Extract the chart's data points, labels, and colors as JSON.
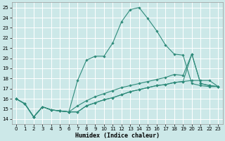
{
  "xlabel": "Humidex (Indice chaleur)",
  "bg_color": "#cce8e8",
  "grid_color": "#ffffff",
  "line_color": "#2e8b7a",
  "xlim": [
    -0.5,
    23.5
  ],
  "ylim": [
    13.5,
    25.5
  ],
  "yticks": [
    14,
    15,
    16,
    17,
    18,
    19,
    20,
    21,
    22,
    23,
    24,
    25
  ],
  "xticks": [
    0,
    1,
    2,
    3,
    4,
    5,
    6,
    7,
    8,
    9,
    10,
    11,
    12,
    13,
    14,
    15,
    16,
    17,
    18,
    19,
    20,
    21,
    22,
    23
  ],
  "series": [
    {
      "x": [
        0,
        1,
        2,
        3,
        4,
        5,
        6,
        7,
        8,
        9,
        10,
        11,
        12,
        13,
        14,
        15,
        16,
        17,
        18,
        19,
        20,
        21,
        22,
        23
      ],
      "y": [
        16.0,
        15.5,
        14.2,
        15.2,
        14.9,
        14.8,
        14.7,
        14.7,
        15.3,
        15.6,
        15.9,
        16.1,
        16.4,
        16.7,
        16.9,
        17.1,
        17.3,
        17.4,
        17.6,
        17.7,
        17.8,
        17.8,
        17.8,
        17.2
      ]
    },
    {
      "x": [
        0,
        1,
        2,
        3,
        4,
        5,
        6,
        7,
        8,
        9,
        10,
        11,
        12,
        13,
        14,
        15,
        16,
        17,
        18,
        19,
        20,
        21,
        22,
        23
      ],
      "y": [
        16.0,
        15.5,
        14.2,
        15.2,
        14.9,
        14.8,
        14.7,
        17.8,
        19.8,
        20.2,
        20.2,
        21.5,
        23.6,
        24.8,
        25.0,
        23.9,
        22.7,
        21.3,
        20.4,
        20.3,
        17.5,
        17.3,
        17.2,
        17.2
      ]
    },
    {
      "x": [
        0,
        1,
        2,
        3,
        4,
        5,
        6,
        7,
        8,
        9,
        10,
        11,
        12,
        13,
        14,
        15,
        16,
        17,
        18,
        19,
        20,
        21,
        22,
        23
      ],
      "y": [
        16.0,
        15.5,
        14.2,
        15.2,
        14.9,
        14.8,
        14.7,
        15.3,
        15.8,
        16.2,
        16.5,
        16.8,
        17.1,
        17.3,
        17.5,
        17.7,
        17.9,
        18.1,
        18.4,
        18.3,
        20.4,
        17.5,
        17.3,
        17.2
      ]
    },
    {
      "x": [
        0,
        1,
        2,
        3,
        4,
        5,
        6,
        7,
        8,
        9,
        10,
        11,
        12,
        13,
        14,
        15,
        16,
        17,
        18,
        19,
        20,
        21,
        22,
        23
      ],
      "y": [
        16.0,
        15.5,
        14.2,
        15.2,
        14.9,
        14.8,
        14.7,
        14.7,
        15.3,
        15.6,
        15.9,
        16.1,
        16.4,
        16.7,
        16.9,
        17.1,
        17.3,
        17.4,
        17.6,
        17.7,
        20.4,
        17.5,
        17.3,
        17.2
      ]
    }
  ],
  "tick_fontsize": 5.0,
  "label_fontsize": 6.0
}
